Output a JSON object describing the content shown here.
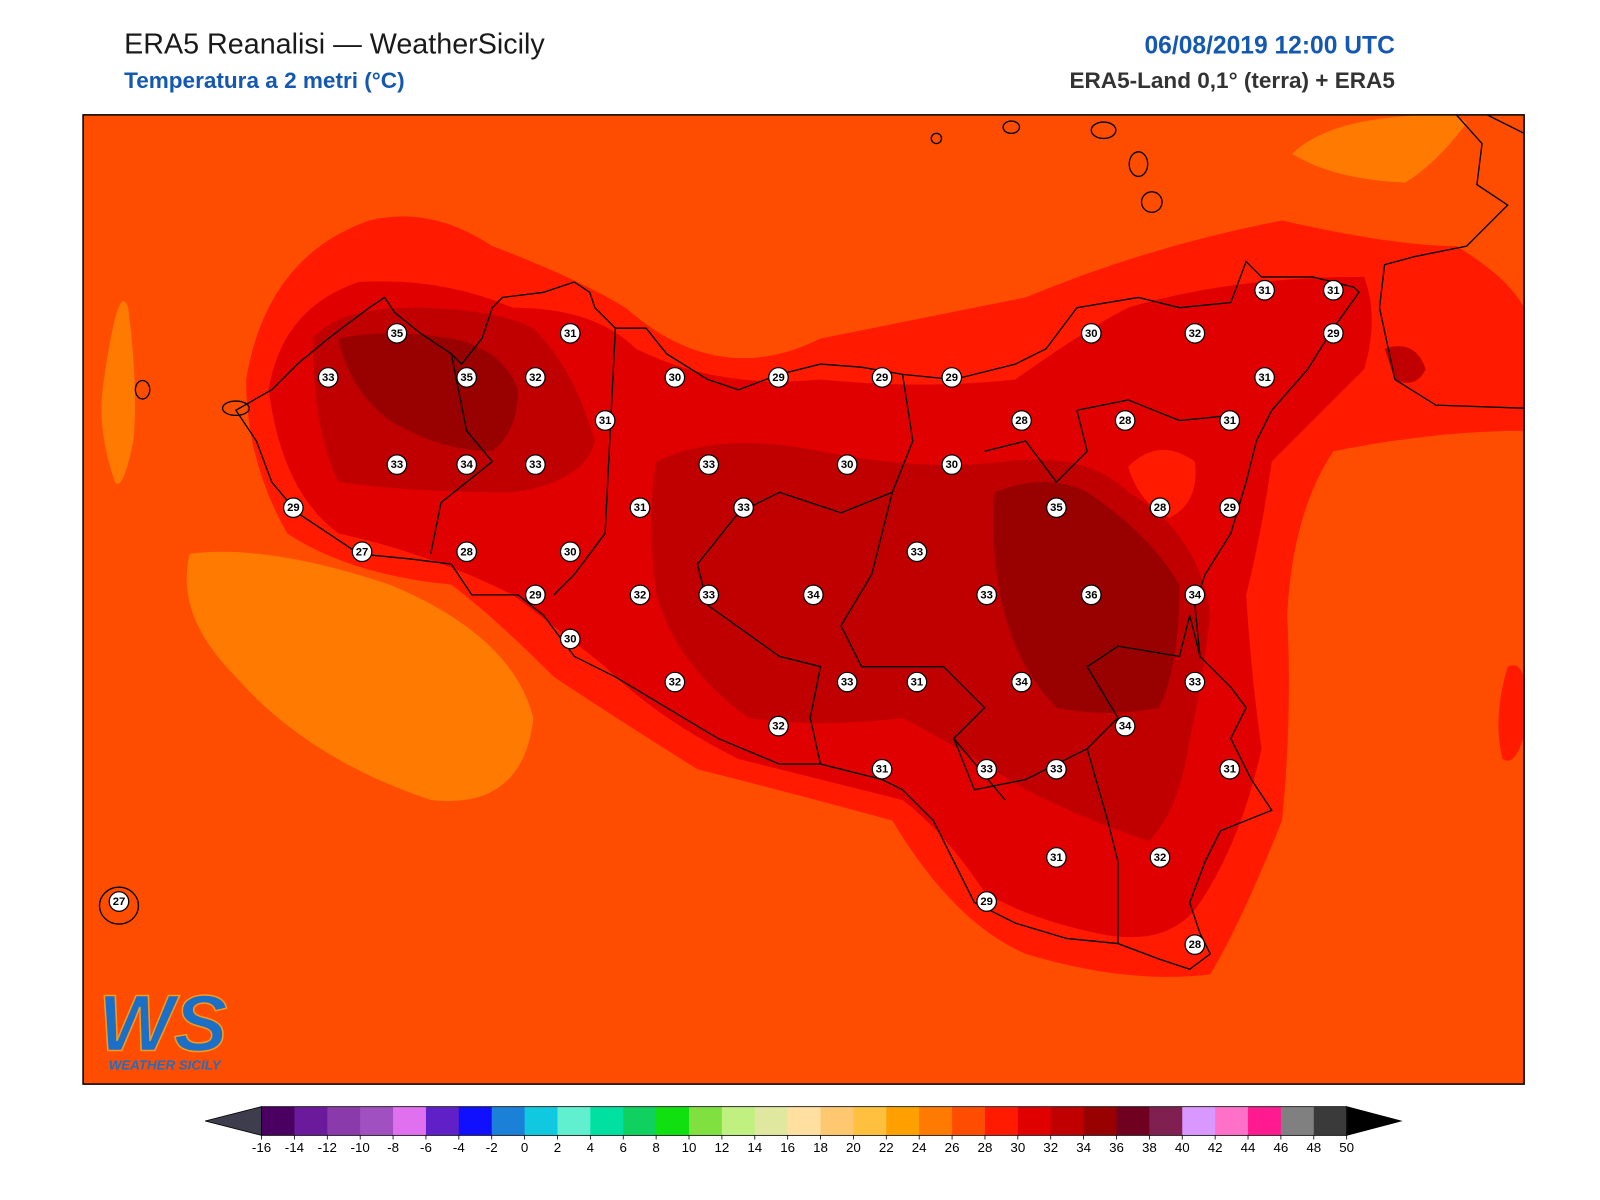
{
  "header": {
    "title": "ERA5 Reanalisi — WeatherSicily",
    "subtitle": "Temperatura a 2 metri (°C)",
    "datetime": "06/08/2019 12:00 UTC",
    "source": "ERA5-Land 0,1° (terra) + ERA5"
  },
  "logo": {
    "mark": "WS",
    "name": "WEATHER SICILY"
  },
  "map": {
    "stations": [
      31,
      31,
      35,
      31,
      30,
      32,
      29,
      33,
      35,
      32,
      30,
      29,
      29,
      29,
      31,
      31,
      28,
      28,
      31,
      33,
      34,
      33,
      33,
      30,
      30,
      29,
      31,
      33,
      35,
      28,
      29,
      27,
      28,
      30,
      33,
      29,
      32,
      33,
      34,
      33,
      36,
      34,
      30,
      32,
      33,
      31,
      34,
      33,
      32,
      34,
      31,
      33,
      33,
      31,
      31,
      32,
      29,
      28,
      27
    ]
  },
  "colorbar": {
    "ticks": [
      -16,
      -14,
      -12,
      -10,
      -8,
      -6,
      -4,
      -2,
      0,
      2,
      4,
      6,
      8,
      10,
      12,
      14,
      16,
      18,
      20,
      22,
      24,
      26,
      28,
      30,
      32,
      34,
      36,
      38,
      40,
      42,
      44,
      46,
      48,
      50
    ],
    "colors": [
      "#4a0060",
      "#6a1a9a",
      "#8a3aaa",
      "#a050c0",
      "#e070f0",
      "#6020c8",
      "#1010ff",
      "#1a80d8",
      "#10c8e0",
      "#60f0d0",
      "#00e0a0",
      "#10d060",
      "#10e010",
      "#80e040",
      "#c0f080",
      "#e0e8a0",
      "#ffe0a0",
      "#ffc870",
      "#ffc040",
      "#ffa000",
      "#ff7a00",
      "#ff4d00",
      "#ff1a00",
      "#e00000",
      "#c00000",
      "#990000",
      "#700020",
      "#802050",
      "#d898ff",
      "#ff70c8",
      "#ff1a90",
      "#808080",
      "#3a3a3a"
    ],
    "under_color": "#3d3d4d",
    "over_color": "#000000"
  }
}
